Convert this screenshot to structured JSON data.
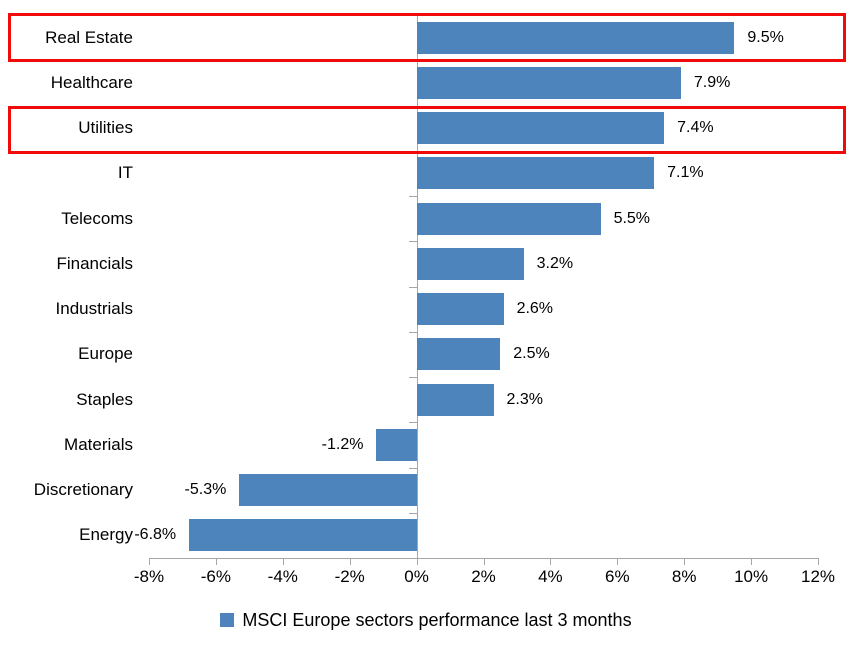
{
  "chart_data": {
    "type": "bar",
    "orientation": "horizontal",
    "title": "",
    "categories": [
      "Real Estate",
      "Healthcare",
      "Utilities",
      "IT",
      "Telecoms",
      "Financials",
      "Industrials",
      "Europe",
      "Staples",
      "Materials",
      "Discretionary",
      "Energy"
    ],
    "values": [
      9.5,
      7.9,
      7.4,
      7.1,
      5.5,
      3.2,
      2.6,
      2.5,
      2.3,
      -1.2,
      -5.3,
      -6.8
    ],
    "value_labels": [
      "9.5%",
      "7.9%",
      "7.4%",
      "7.1%",
      "5.5%",
      "3.2%",
      "2.6%",
      "2.5%",
      "2.3%",
      "-1.2%",
      "-5.3%",
      "-6.8%"
    ],
    "highlighted_categories": [
      "Real Estate",
      "Utilities"
    ],
    "x_tick_labels": [
      "-8%",
      "-6%",
      "-4%",
      "-2%",
      "0%",
      "2%",
      "4%",
      "6%",
      "8%",
      "10%",
      "12%"
    ],
    "x_tick_values": [
      -8,
      -6,
      -4,
      -2,
      0,
      2,
      4,
      6,
      8,
      10,
      12
    ],
    "xlim": [
      -8,
      12
    ],
    "grid": "off",
    "legend": "MSCI Europe sectors performance last 3 months",
    "legend_position": "bottom-center",
    "colors": {
      "bar": "#4e84bc",
      "highlight_box": "#f00a0a",
      "axis": "#a6a6a6",
      "text": "#000000",
      "background": "#ffffff"
    }
  }
}
